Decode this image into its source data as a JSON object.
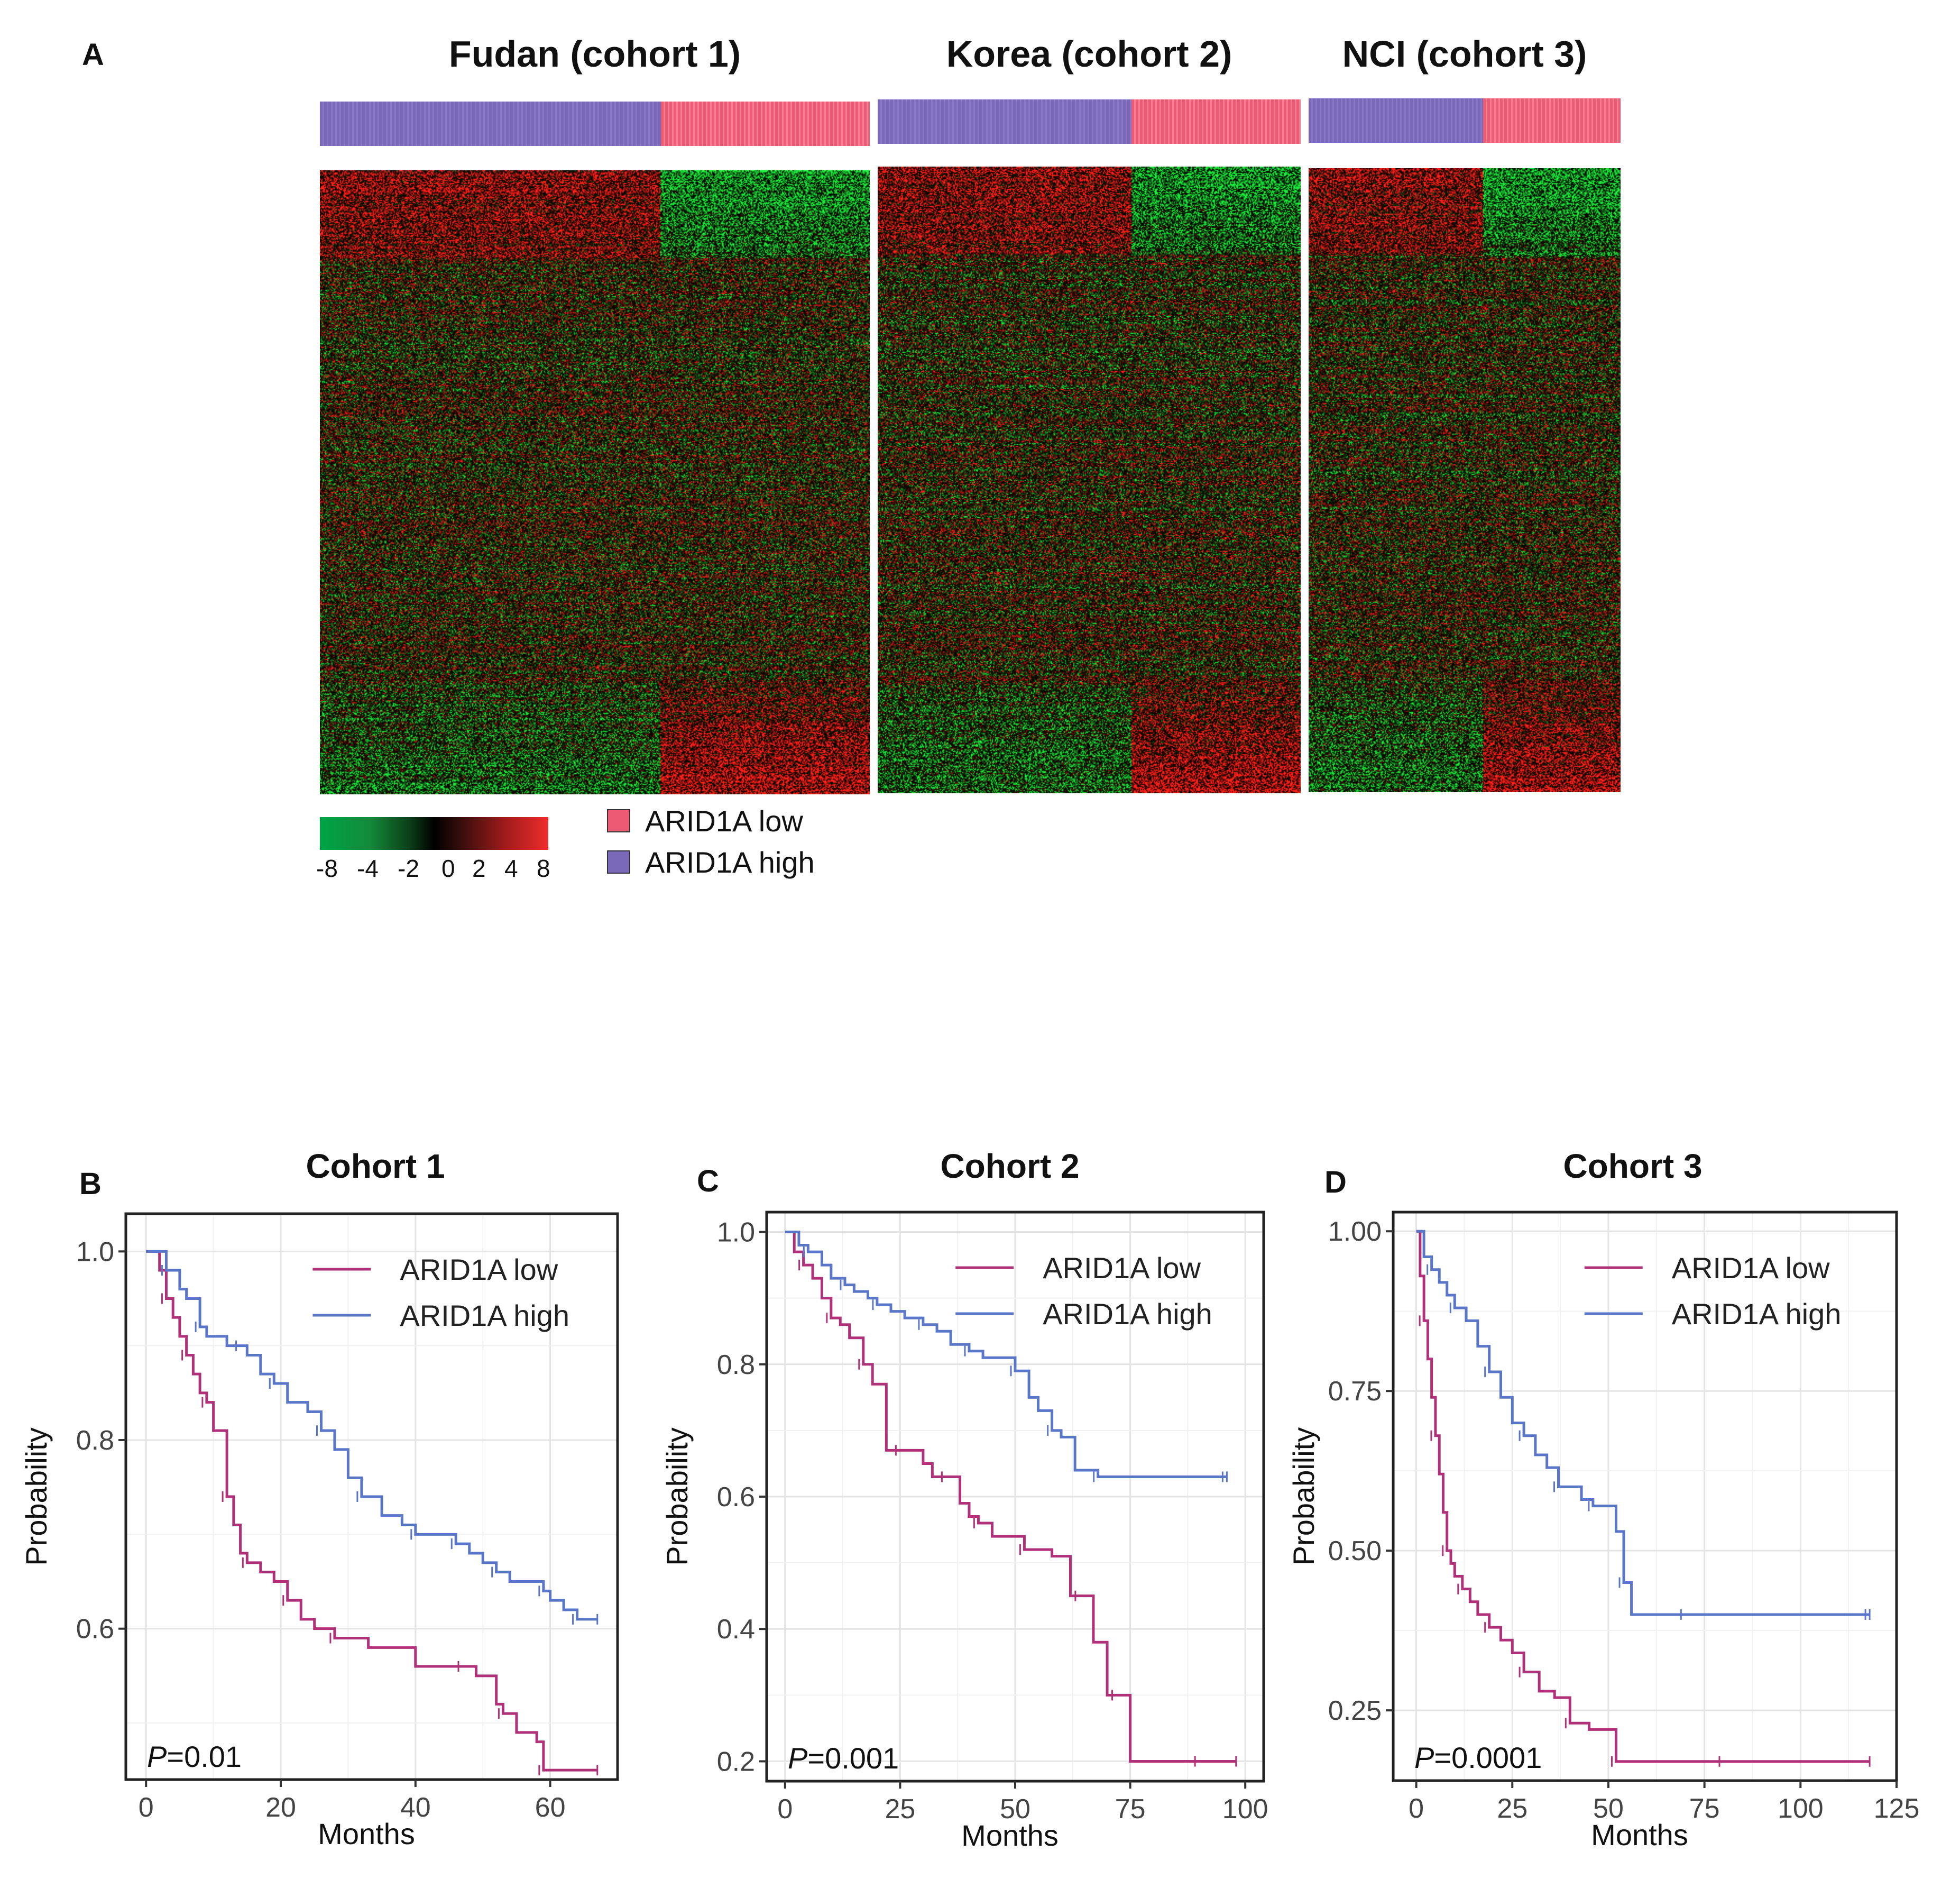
{
  "panel_a": {
    "letter": "A",
    "cohorts": [
      {
        "title": "Fudan (cohort 1)",
        "high_fraction": 0.62
      },
      {
        "title": "Korea (cohort 2)",
        "high_fraction": 0.6
      },
      {
        "title": "NCI (cohort 3)",
        "high_fraction": 0.56
      }
    ],
    "color_scale": {
      "ticks": [
        "-8",
        "-4",
        "-2",
        "0",
        "2",
        "4",
        "8"
      ]
    },
    "legend": {
      "low_label": "ARID1A low",
      "high_label": "ARID1A high",
      "low_color": "#ec5a74",
      "high_color": "#7a68b8"
    }
  },
  "chart_data": [
    {
      "type": "line",
      "letter": "B",
      "title": "Cohort 1",
      "xlabel": "Months",
      "ylabel": "Probability",
      "xlim": [
        -3,
        70
      ],
      "ylim": [
        0.44,
        1.04
      ],
      "xticks": [
        0,
        20,
        40,
        60
      ],
      "xtick_labels": [
        "0",
        "20",
        "40",
        "60"
      ],
      "yticks": [
        0.6,
        0.8,
        1.0
      ],
      "ytick_labels": [
        "0.6",
        "0.8",
        "1.0"
      ],
      "annotation": {
        "italic": "P",
        "rest": "=0.01"
      },
      "legend_position": "top-right",
      "series": [
        {
          "name": "ARID1A low",
          "color": "#b0307a",
          "x": [
            0,
            2,
            3,
            4,
            5,
            6,
            7,
            8,
            9,
            10,
            11,
            12,
            13,
            14,
            15,
            17,
            19,
            21,
            23,
            25,
            28,
            33,
            40,
            47,
            49,
            52,
            53,
            55,
            58,
            59,
            67
          ],
          "y": [
            1.0,
            0.98,
            0.95,
            0.93,
            0.91,
            0.89,
            0.87,
            0.85,
            0.84,
            0.81,
            0.81,
            0.74,
            0.71,
            0.68,
            0.67,
            0.66,
            0.65,
            0.63,
            0.61,
            0.6,
            0.59,
            0.58,
            0.56,
            0.56,
            0.55,
            0.52,
            0.51,
            0.49,
            0.48,
            0.45,
            0.45
          ]
        },
        {
          "name": "ARID1A high",
          "color": "#5a76c8",
          "x": [
            0,
            1,
            3,
            5,
            6,
            8,
            9,
            12,
            14,
            15,
            17,
            19,
            21,
            24,
            26,
            28,
            30,
            32,
            35,
            38,
            40,
            42,
            44,
            46,
            48,
            50,
            52,
            54,
            57,
            59,
            60,
            62,
            64,
            67
          ],
          "y": [
            1.0,
            1.0,
            0.98,
            0.96,
            0.95,
            0.92,
            0.91,
            0.9,
            0.9,
            0.89,
            0.87,
            0.86,
            0.84,
            0.83,
            0.81,
            0.79,
            0.76,
            0.74,
            0.72,
            0.71,
            0.7,
            0.7,
            0.7,
            0.69,
            0.68,
            0.67,
            0.66,
            0.65,
            0.65,
            0.64,
            0.63,
            0.62,
            0.61,
            0.61
          ]
        }
      ]
    },
    {
      "type": "line",
      "letter": "C",
      "title": "Cohort 2",
      "xlabel": "Months",
      "ylabel": "Probability",
      "xlim": [
        -4,
        104
      ],
      "ylim": [
        0.17,
        1.03
      ],
      "xticks": [
        0,
        25,
        50,
        75,
        100
      ],
      "xtick_labels": [
        "0",
        "25",
        "50",
        "75",
        "100"
      ],
      "yticks": [
        0.2,
        0.4,
        0.6,
        0.8,
        1.0
      ],
      "ytick_labels": [
        "0.2",
        "0.4",
        "0.6",
        "0.8",
        "1.0"
      ],
      "annotation": {
        "italic": "P",
        "rest": "=0.001"
      },
      "legend_position": "top-right",
      "series": [
        {
          "name": "ARID1A low",
          "color": "#b0307a",
          "x": [
            0,
            2,
            4,
            6,
            8,
            10,
            12,
            14,
            17,
            19,
            22,
            25,
            30,
            32,
            35,
            38,
            40,
            42,
            45,
            50,
            52,
            58,
            62,
            64,
            67,
            70,
            72,
            75,
            80,
            90,
            98
          ],
          "y": [
            1.0,
            0.97,
            0.95,
            0.93,
            0.9,
            0.87,
            0.86,
            0.84,
            0.8,
            0.77,
            0.67,
            0.67,
            0.65,
            0.63,
            0.63,
            0.59,
            0.57,
            0.56,
            0.54,
            0.54,
            0.52,
            0.51,
            0.45,
            0.45,
            0.38,
            0.3,
            0.3,
            0.2,
            0.2,
            0.2,
            0.2
          ]
        },
        {
          "name": "ARID1A high",
          "color": "#5a76c8",
          "x": [
            0,
            3,
            5,
            8,
            10,
            13,
            15,
            18,
            20,
            23,
            26,
            30,
            33,
            36,
            40,
            43,
            46,
            50,
            53,
            55,
            58,
            60,
            63,
            68,
            75,
            85,
            96
          ],
          "y": [
            1.0,
            0.98,
            0.97,
            0.95,
            0.93,
            0.92,
            0.91,
            0.9,
            0.89,
            0.88,
            0.87,
            0.86,
            0.85,
            0.83,
            0.82,
            0.81,
            0.81,
            0.79,
            0.75,
            0.73,
            0.7,
            0.69,
            0.64,
            0.63,
            0.63,
            0.63,
            0.63
          ]
        }
      ]
    },
    {
      "type": "line",
      "letter": "D",
      "title": "Cohort 3",
      "xlabel": "Months",
      "ylabel": "Probability",
      "xlim": [
        -6,
        125
      ],
      "ylim": [
        0.14,
        1.03
      ],
      "xticks": [
        0,
        25,
        50,
        75,
        100,
        125
      ],
      "xtick_labels": [
        "0",
        "25",
        "50",
        "75",
        "100",
        "125"
      ],
      "yticks": [
        0.25,
        0.5,
        0.75,
        1.0
      ],
      "ytick_labels": [
        "0.25",
        "0.50",
        "0.75",
        "1.00"
      ],
      "annotation": {
        "italic": "P",
        "rest": "=0.0001"
      },
      "legend_position": "top-right",
      "series": [
        {
          "name": "ARID1A low",
          "color": "#b0307a",
          "x": [
            0,
            1,
            2,
            3,
            4,
            5,
            6,
            7,
            8,
            9,
            10,
            12,
            14,
            16,
            19,
            22,
            25,
            28,
            32,
            36,
            40,
            45,
            48,
            52,
            56,
            65,
            80,
            100,
            118
          ],
          "y": [
            1.0,
            0.93,
            0.86,
            0.8,
            0.74,
            0.68,
            0.62,
            0.56,
            0.5,
            0.48,
            0.46,
            0.44,
            0.42,
            0.4,
            0.38,
            0.36,
            0.34,
            0.31,
            0.28,
            0.27,
            0.23,
            0.22,
            0.22,
            0.17,
            0.17,
            0.17,
            0.17,
            0.17,
            0.17
          ]
        },
        {
          "name": "ARID1A high",
          "color": "#5a76c8",
          "x": [
            0,
            2,
            4,
            6,
            8,
            10,
            13,
            16,
            19,
            22,
            25,
            28,
            31,
            34,
            37,
            40,
            43,
            46,
            50,
            52,
            54,
            56,
            60,
            70,
            80,
            100,
            118
          ],
          "y": [
            1.0,
            0.96,
            0.94,
            0.92,
            0.9,
            0.88,
            0.86,
            0.82,
            0.78,
            0.74,
            0.7,
            0.68,
            0.65,
            0.63,
            0.6,
            0.6,
            0.58,
            0.57,
            0.57,
            0.53,
            0.45,
            0.4,
            0.4,
            0.4,
            0.4,
            0.4,
            0.4
          ]
        }
      ]
    }
  ]
}
